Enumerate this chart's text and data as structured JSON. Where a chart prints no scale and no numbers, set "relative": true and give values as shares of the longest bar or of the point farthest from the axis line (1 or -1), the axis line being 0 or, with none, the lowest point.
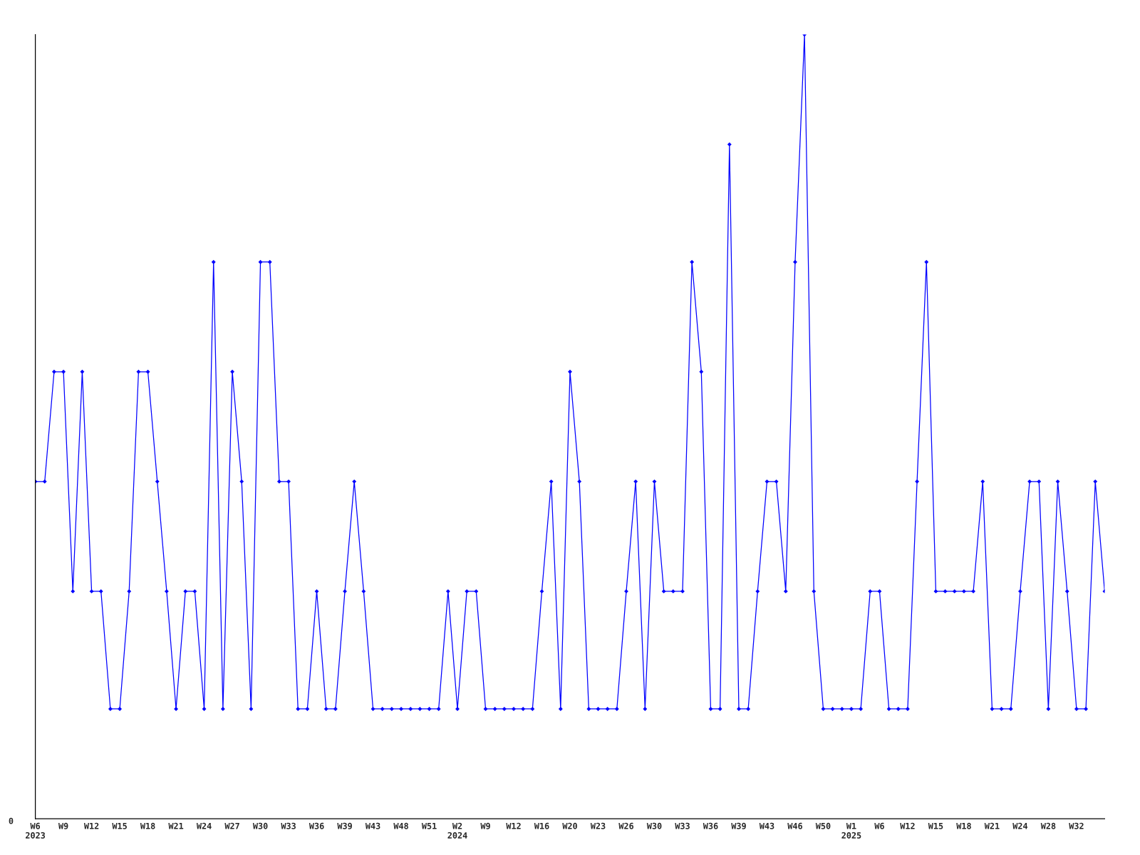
{
  "chart_data": {
    "type": "line",
    "relative": true,
    "marker": "diamond",
    "line_style": "solid",
    "grid": false,
    "categories": [
      "W6\n2023",
      null,
      null,
      "W9",
      null,
      null,
      "W12",
      null,
      null,
      "W15",
      null,
      null,
      "W18",
      null,
      null,
      "W21",
      null,
      null,
      "W24",
      null,
      null,
      "W27",
      null,
      null,
      "W30",
      null,
      null,
      "W33",
      null,
      null,
      "W36",
      null,
      null,
      "W39",
      null,
      null,
      "W43",
      null,
      null,
      "W48",
      null,
      null,
      "W51",
      null,
      null,
      "W2\n2024",
      null,
      null,
      "W9",
      null,
      null,
      "W12",
      null,
      null,
      "W16",
      null,
      null,
      "W20",
      null,
      null,
      "W23",
      null,
      null,
      "W26",
      null,
      null,
      "W30",
      null,
      null,
      "W33",
      null,
      null,
      "W36",
      null,
      null,
      "W39",
      null,
      null,
      "W43",
      null,
      null,
      "W46",
      null,
      null,
      "W50",
      null,
      null,
      "W1\n2025",
      null,
      null,
      "W6",
      null,
      null,
      "W12",
      null,
      null,
      "W15",
      null,
      null,
      "W18",
      null,
      null,
      "W21",
      null,
      null,
      "W24",
      null,
      null,
      "W28",
      null,
      null,
      "W32",
      null,
      null,
      null
    ],
    "series": [
      {
        "color": "#0000ff",
        "values": [
          0.43,
          0.43,
          0.57,
          0.57,
          0.29,
          0.57,
          0.29,
          0.29,
          0.14,
          0.14,
          0.29,
          0.57,
          0.57,
          0.43,
          0.29,
          0.14,
          0.29,
          0.29,
          0.14,
          0.71,
          0.14,
          0.57,
          0.43,
          0.14,
          0.71,
          0.71,
          0.43,
          0.43,
          0.14,
          0.14,
          0.29,
          0.14,
          0.14,
          0.29,
          0.43,
          0.29,
          0.14,
          0.14,
          0.14,
          0.14,
          0.14,
          0.14,
          0.14,
          0.14,
          0.29,
          0.14,
          0.29,
          0.29,
          0.14,
          0.14,
          0.14,
          0.14,
          0.14,
          0.14,
          0.29,
          0.43,
          0.14,
          0.57,
          0.43,
          0.14,
          0.14,
          0.14,
          0.14,
          0.29,
          0.43,
          0.14,
          0.43,
          0.29,
          0.29,
          0.29,
          0.71,
          0.57,
          0.14,
          0.14,
          0.86,
          0.14,
          0.14,
          0.29,
          0.43,
          0.43,
          0.29,
          0.71,
          1,
          0.29,
          0.14,
          0.14,
          0.14,
          0.14,
          0.14,
          0.29,
          0.29,
          0.14,
          0.14,
          0.14,
          0.43,
          0.71,
          0.29,
          0.29,
          0.29,
          0.29,
          0.29,
          0.43,
          0.14,
          0.14,
          0.14,
          0.29,
          0.43,
          0.43,
          0.14,
          0.43,
          0.29,
          0.14,
          0.14,
          0.43,
          0.29
        ]
      }
    ],
    "annotations": [
      "0"
    ]
  }
}
